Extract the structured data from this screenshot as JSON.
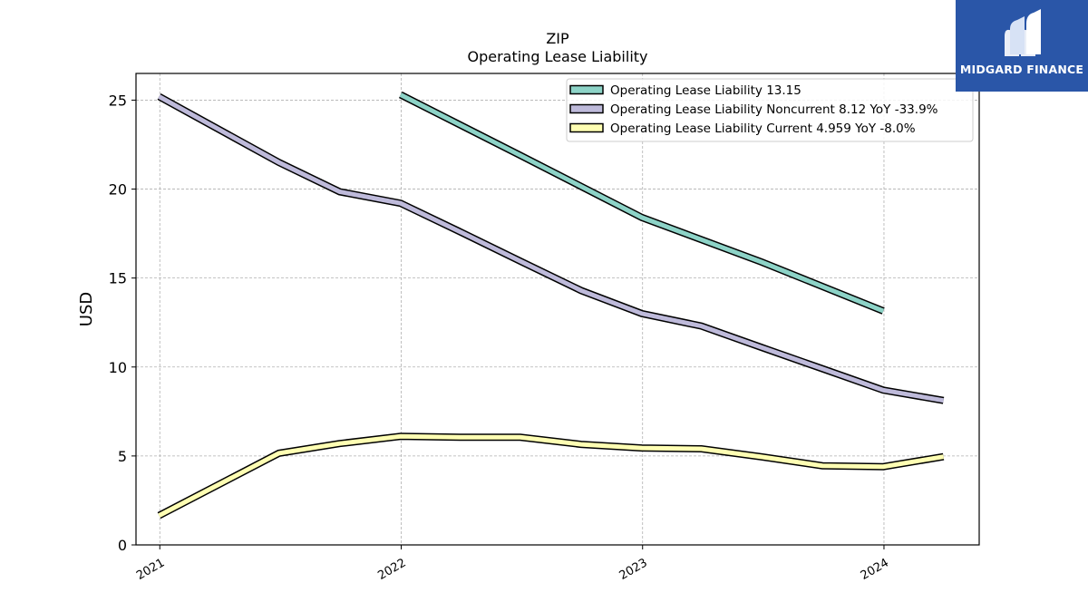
{
  "brand": {
    "name": "MIDGARD FINANCE",
    "color": "#2a56a8",
    "icon": "midgard-logo-icon"
  },
  "chart_data": {
    "type": "line",
    "title": "ZIP",
    "subtitle": "Operating Lease Liability",
    "xlabel": "",
    "ylabel": "USD",
    "x_ticks": [
      "2021",
      "2022",
      "2023",
      "2024"
    ],
    "y_ticks": [
      0,
      5,
      10,
      15,
      20,
      25
    ],
    "ylim": [
      0,
      26.5
    ],
    "xlim": [
      "2020-11-26",
      "2024-05-24"
    ],
    "grid": true,
    "legend_position": "top-right",
    "series": [
      {
        "name": "Operating Lease Liability  13.15",
        "color": "#8dd3c7",
        "points": [
          [
            "2021-12-31",
            25.3
          ],
          [
            "2022-06-30",
            21.9
          ],
          [
            "2022-12-31",
            18.4
          ],
          [
            "2023-06-30",
            15.9
          ],
          [
            "2023-12-31",
            13.15
          ]
        ]
      },
      {
        "name": "Operating Lease Liability Noncurrent  8.12 YoY -33.9%",
        "color": "#bebada",
        "points": [
          [
            "2020-12-31",
            25.2
          ],
          [
            "2021-06-30",
            21.5
          ],
          [
            "2021-09-30",
            19.85
          ],
          [
            "2021-12-31",
            19.2
          ],
          [
            "2022-03-31",
            17.6
          ],
          [
            "2022-06-30",
            15.95
          ],
          [
            "2022-09-30",
            14.3
          ],
          [
            "2022-12-31",
            13.0
          ],
          [
            "2023-03-31",
            12.3
          ],
          [
            "2023-06-30",
            11.1
          ],
          [
            "2023-09-30",
            9.9
          ],
          [
            "2023-12-31",
            8.7
          ],
          [
            "2024-03-31",
            8.12
          ]
        ]
      },
      {
        "name": "Operating Lease Liability Current  4.959 YoY -8.0%",
        "color": "#ffffb3",
        "points": [
          [
            "2020-12-31",
            1.65
          ],
          [
            "2021-06-30",
            5.15
          ],
          [
            "2021-09-30",
            5.7
          ],
          [
            "2021-12-31",
            6.1
          ],
          [
            "2022-03-31",
            6.05
          ],
          [
            "2022-06-30",
            6.05
          ],
          [
            "2022-09-30",
            5.65
          ],
          [
            "2022-12-31",
            5.45
          ],
          [
            "2023-03-31",
            5.4
          ],
          [
            "2023-06-30",
            4.95
          ],
          [
            "2023-09-30",
            4.45
          ],
          [
            "2023-12-31",
            4.4
          ],
          [
            "2024-03-31",
            4.959
          ]
        ]
      }
    ]
  }
}
